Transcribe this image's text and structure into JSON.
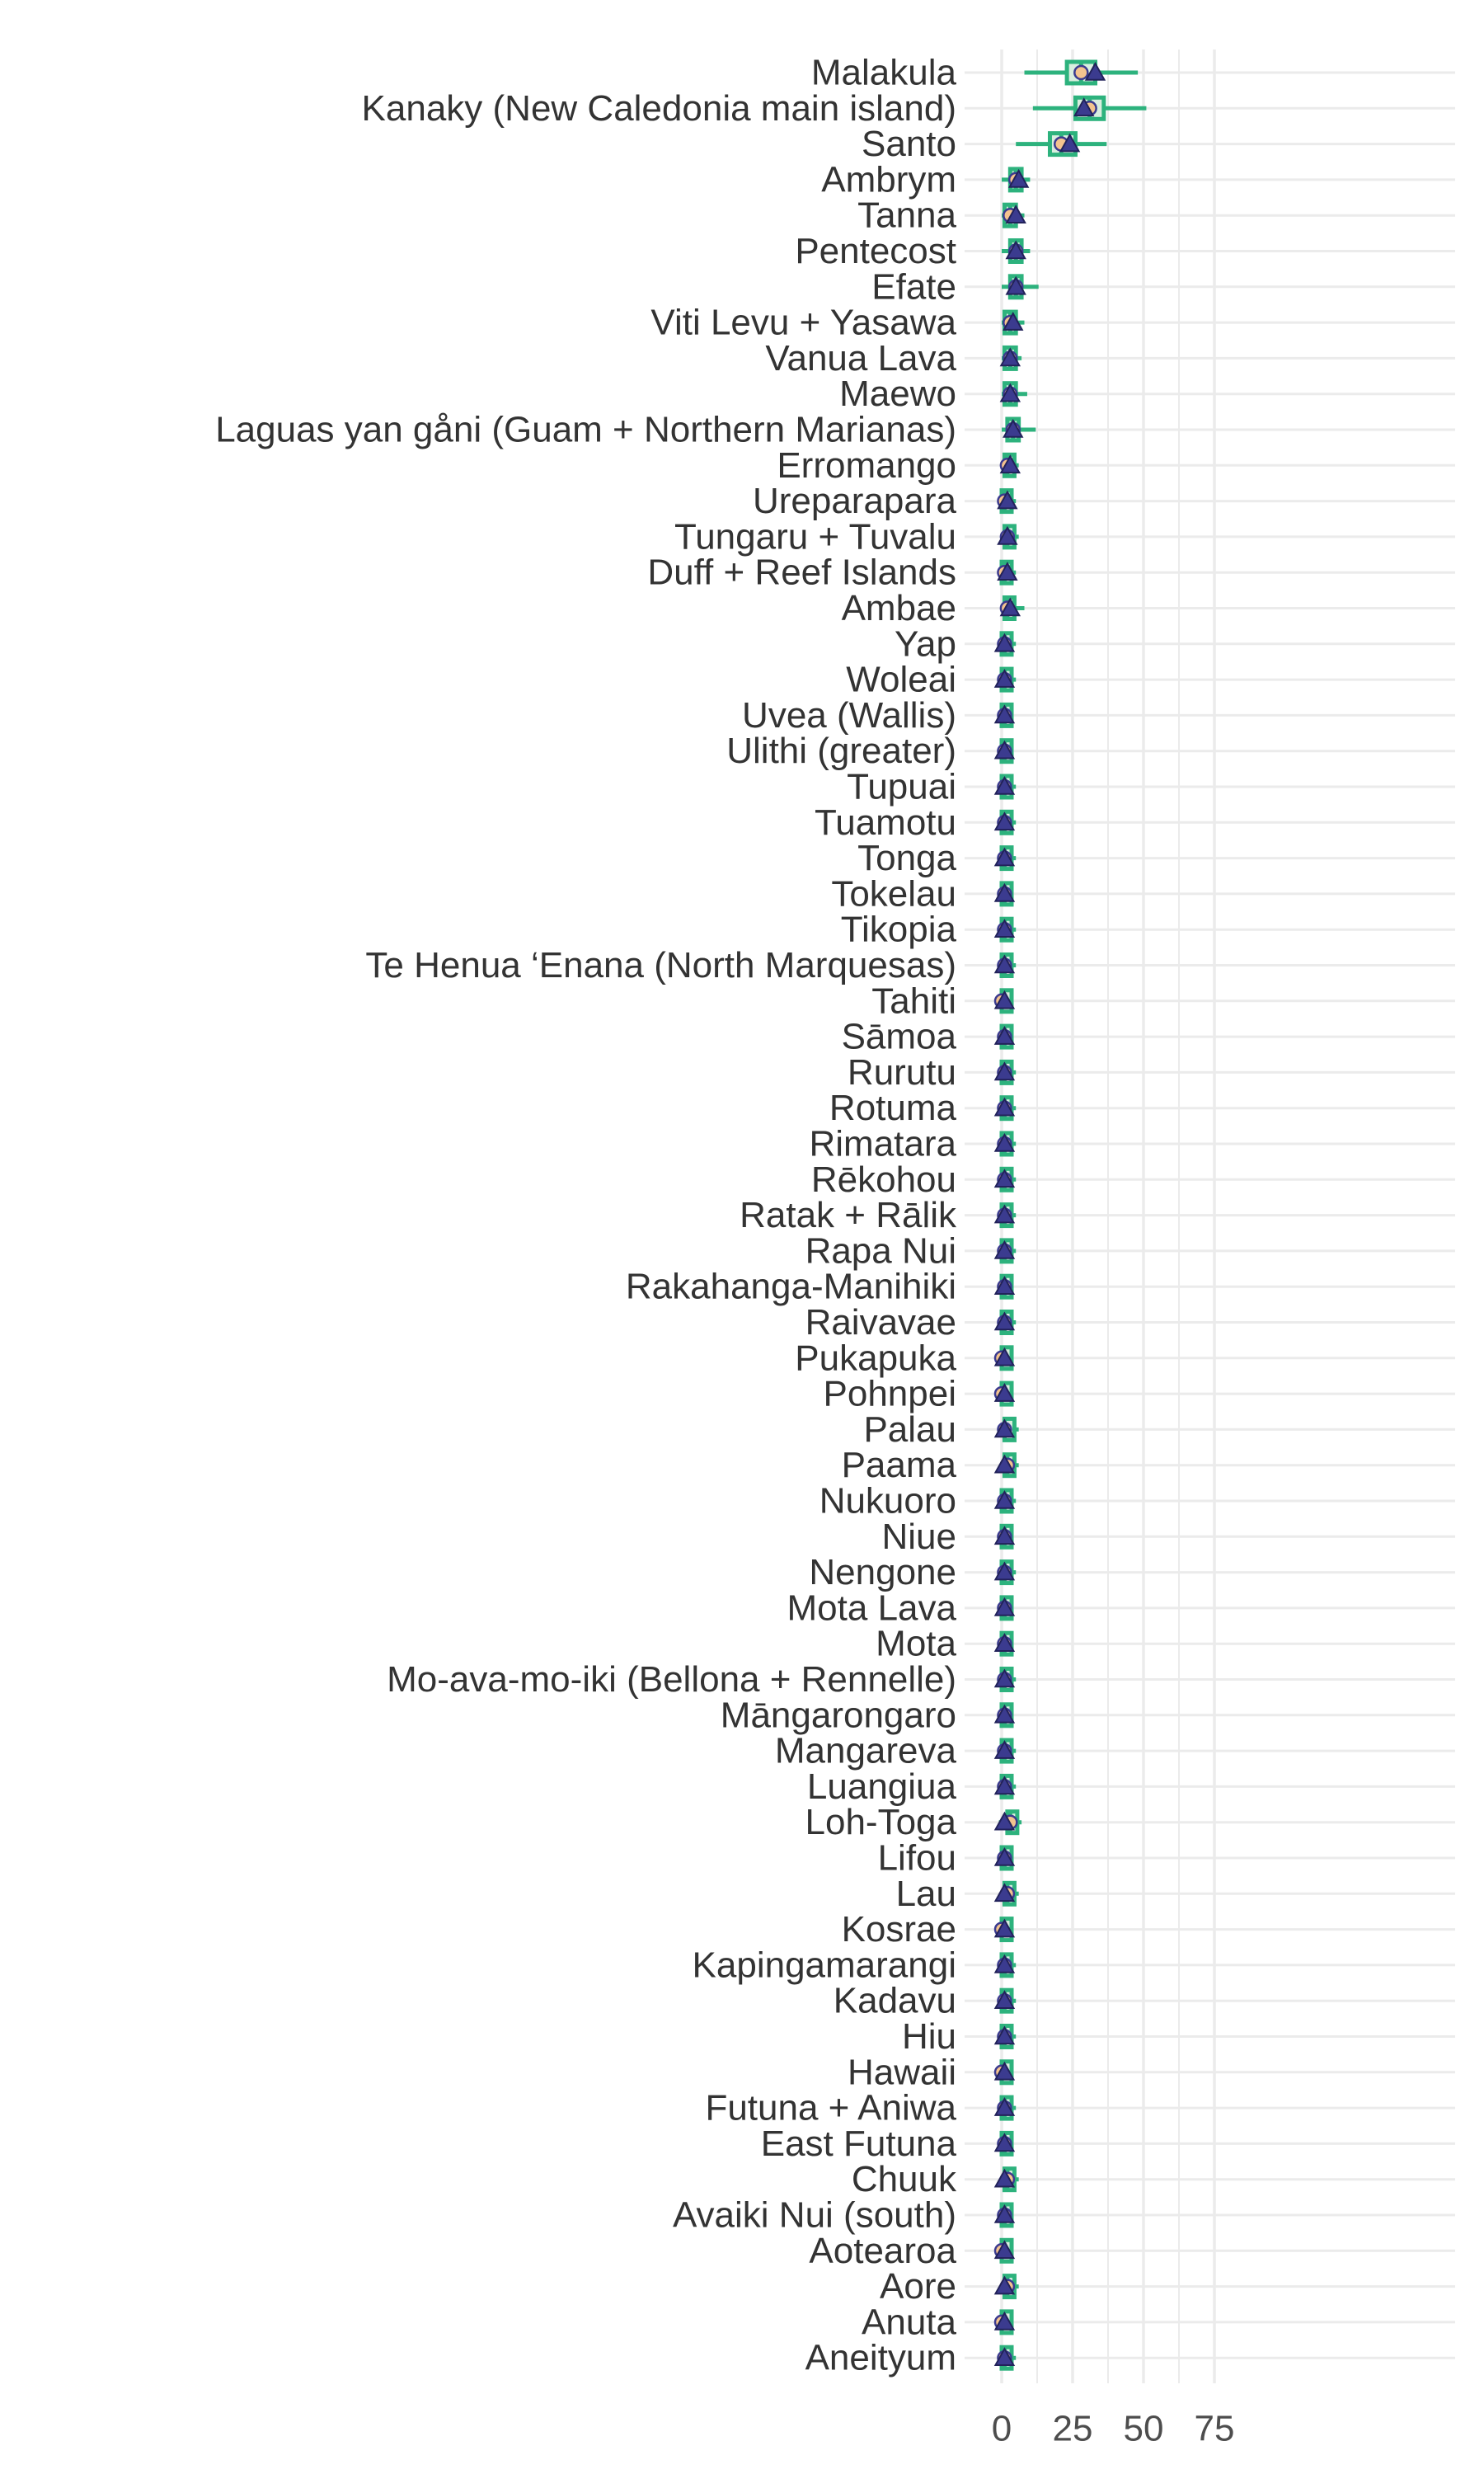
{
  "chart_data": {
    "type": "boxplot",
    "orientation": "horizontal",
    "title": "",
    "xlabel": "",
    "ylabel": "",
    "xlim": [
      -3,
      80
    ],
    "xticks": [
      0,
      25,
      50,
      75
    ],
    "grid": true,
    "legend": "none",
    "colors": {
      "box": "#2db27d",
      "box_fill": "#d9eedf",
      "median_point": "#f4c38f",
      "mean_point": "#3b3b8f",
      "grid": "#ebebeb",
      "text": "#333333"
    },
    "categories": [
      "Malakula",
      "Kanaky (New Caledonia main island)",
      "Santo",
      "Ambrym",
      "Tanna",
      "Pentecost",
      "Efate",
      "Viti Levu + Yasawa",
      "Vanua Lava",
      "Maewo",
      "Laguas yan gåni (Guam + Northern Marianas)",
      "Erromango",
      "Ureparapara",
      "Tungaru + Tuvalu",
      "Duff + Reef Islands",
      "Ambae",
      "Yap",
      "Woleai",
      "Uvea (Wallis)",
      "Ulithi (greater)",
      "Tupuai",
      "Tuamotu",
      "Tonga",
      "Tokelau",
      "Tikopia",
      "Te Henua ‘Enana (North Marquesas)",
      "Tahiti",
      "Sāmoa",
      "Rurutu",
      "Rotuma",
      "Rimatara",
      "Rēkohou",
      "Ratak + Rālik",
      "Rapa Nui",
      "Rakahanga-Manihiki",
      "Raivavae",
      "Pukapuka",
      "Pohnpei",
      "Palau",
      "Paama",
      "Nukuoro",
      "Niue",
      "Nengone",
      "Mota Lava",
      "Mota",
      "Mo-ava-mo-iki (Bellona + Rennelle)",
      "Māngarongaro",
      "Mangareva",
      "Luangiua",
      "Loh-Toga",
      "Lifou",
      "Lau",
      "Kosrae",
      "Kapingamarangi",
      "Kadavu",
      "Hiu",
      "Hawaii",
      "Futuna + Aniwa",
      "East Futuna",
      "Chuuk",
      "Avaiki Nui (south)",
      "Aotearoa",
      "Aore",
      "Anuta",
      "Aneityum"
    ],
    "whisker_low": [
      8,
      11,
      5,
      0,
      0,
      0,
      0,
      0,
      0,
      0,
      0,
      0,
      0,
      0,
      0,
      0,
      0,
      0,
      0,
      0,
      0,
      0,
      0,
      0,
      0,
      0,
      -1,
      0,
      0,
      0,
      0,
      0,
      0,
      0,
      0,
      0,
      -1,
      -1,
      0,
      0,
      0,
      0,
      0,
      0,
      0,
      0,
      0,
      0,
      0,
      -1,
      0,
      0,
      -1,
      0,
      0,
      0,
      -1,
      0,
      0,
      0,
      0,
      -1,
      0,
      -1,
      0
    ],
    "q1": [
      23,
      26,
      17,
      3,
      1,
      3,
      3,
      1,
      1,
      1,
      2,
      1,
      0,
      1,
      0,
      1,
      0,
      0,
      0,
      0,
      0,
      0,
      0,
      0,
      0,
      0,
      0,
      0,
      0,
      0,
      0,
      0,
      0,
      0,
      0,
      0,
      0,
      0,
      1,
      1,
      0,
      0,
      0,
      0,
      0,
      0,
      0,
      0,
      0,
      2,
      0,
      1,
      0,
      0,
      0,
      0,
      0,
      0,
      0,
      1,
      0,
      0,
      1,
      0,
      0
    ],
    "median": [
      28,
      31,
      21,
      5,
      3,
      5,
      5,
      3,
      3,
      3,
      4,
      2,
      1,
      2,
      1,
      2,
      1,
      1,
      1,
      1,
      1,
      1,
      1,
      1,
      1,
      1,
      0,
      1,
      1,
      1,
      1,
      1,
      1,
      1,
      1,
      1,
      0,
      0,
      1,
      2,
      1,
      1,
      1,
      1,
      1,
      1,
      1,
      1,
      1,
      3,
      1,
      2,
      0,
      1,
      1,
      1,
      0,
      1,
      1,
      2,
      1,
      0,
      2,
      0,
      1
    ],
    "q3": [
      33,
      36,
      26,
      7,
      5,
      7,
      7,
      5,
      5,
      5,
      6,
      4,
      3,
      3,
      3,
      4,
      2,
      2,
      2,
      2,
      2,
      2,
      2,
      2,
      2,
      2,
      1,
      2,
      2,
      2,
      2,
      2,
      2,
      2,
      2,
      2,
      1,
      1,
      3,
      3,
      2,
      2,
      2,
      2,
      2,
      2,
      2,
      2,
      2,
      4,
      2,
      3,
      1,
      2,
      2,
      2,
      1,
      2,
      2,
      3,
      2,
      1,
      3,
      1,
      2
    ],
    "whisker_high": [
      48,
      51,
      37,
      10,
      8,
      10,
      13,
      8,
      7,
      9,
      12,
      6,
      5,
      6,
      5,
      8,
      5,
      5,
      4,
      4,
      5,
      5,
      5,
      4,
      5,
      5,
      3,
      4,
      5,
      5,
      5,
      5,
      5,
      5,
      4,
      5,
      3,
      3,
      6,
      6,
      5,
      4,
      5,
      4,
      4,
      5,
      4,
      5,
      5,
      7,
      4,
      6,
      3,
      5,
      5,
      5,
      3,
      5,
      4,
      6,
      4,
      3,
      6,
      3,
      5
    ],
    "mean": [
      33,
      29,
      24,
      6,
      5,
      5,
      5,
      4,
      3,
      3,
      4,
      3,
      2,
      2,
      2,
      3,
      1,
      1,
      1,
      1,
      1,
      1,
      1,
      1,
      1,
      1,
      1,
      1,
      1,
      1,
      1,
      1,
      1,
      1,
      1,
      1,
      1,
      1,
      1,
      1,
      1,
      1,
      1,
      1,
      1,
      1,
      1,
      1,
      1,
      1,
      1,
      1,
      1,
      1,
      1,
      1,
      1,
      1,
      1,
      1,
      1,
      1,
      1,
      1,
      1
    ]
  }
}
